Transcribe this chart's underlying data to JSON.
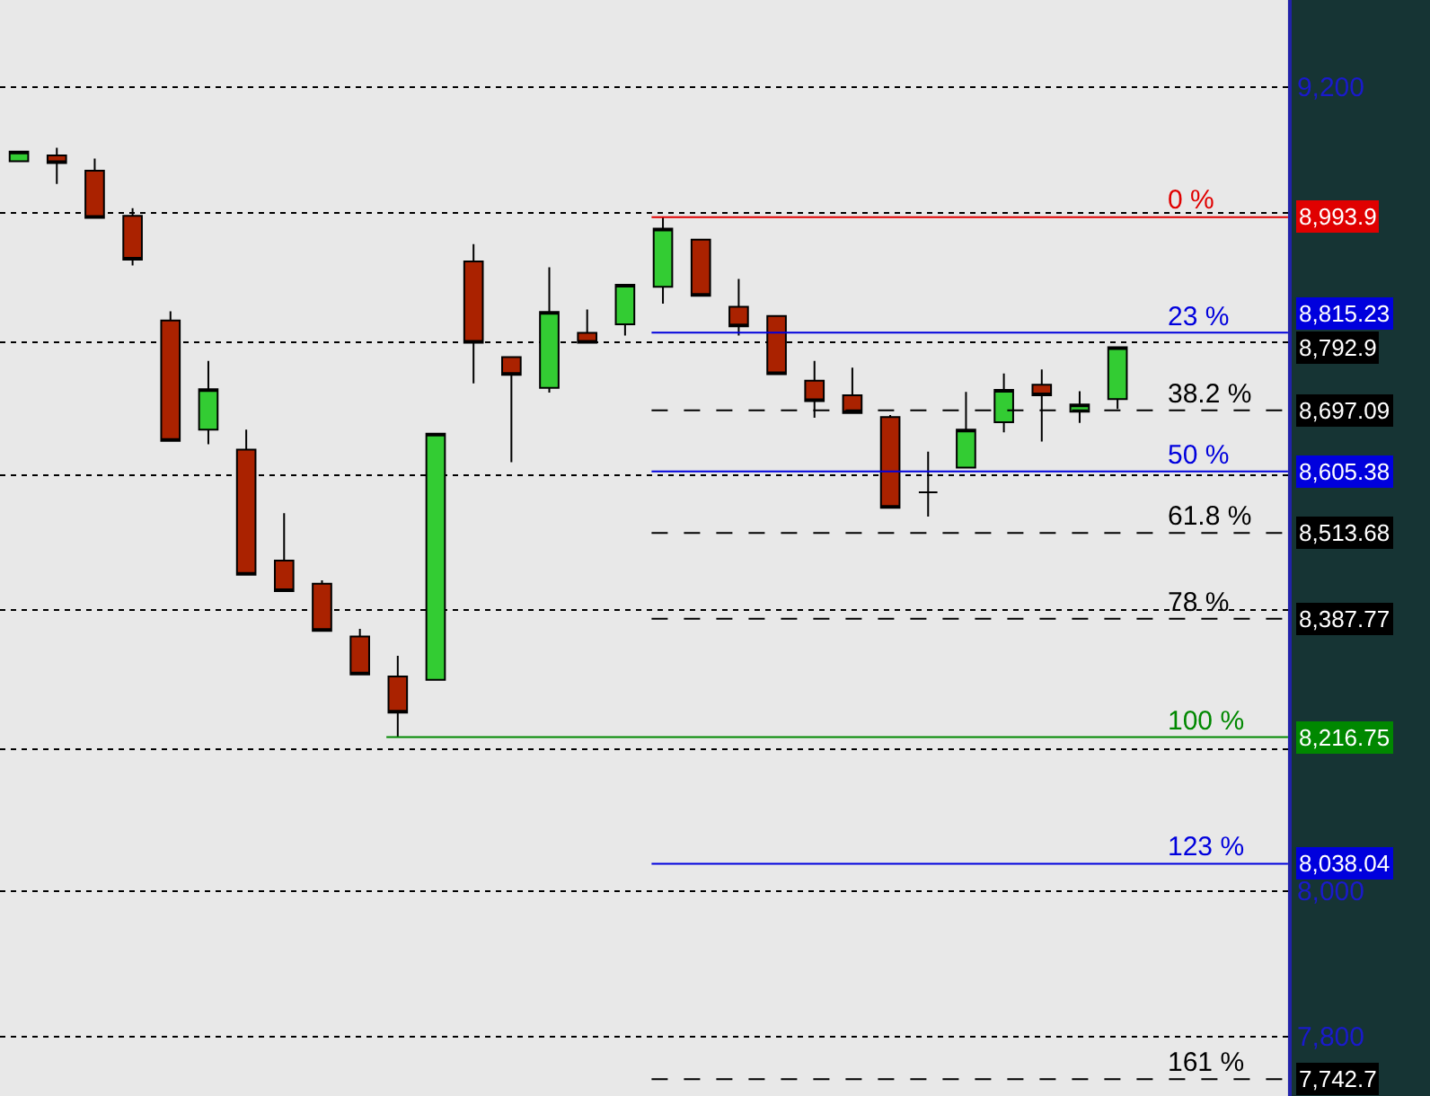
{
  "chart_data": {
    "type": "candlestick",
    "categories": [
      null,
      null,
      null,
      null,
      null,
      null,
      null,
      null,
      null,
      null,
      null,
      null,
      null,
      null,
      null,
      null,
      null,
      null,
      null,
      null,
      null,
      null,
      null,
      null,
      null,
      null,
      null,
      null,
      null,
      null,
      null,
      null,
      null,
      null
    ],
    "ohlc": [
      [
        9082,
        9097,
        9082,
        9097
      ],
      [
        9091,
        9103,
        9046,
        9079
      ],
      [
        9067,
        9086,
        8993,
        8993
      ],
      [
        8996,
        9008,
        8919,
        8928
      ],
      [
        8834,
        8848,
        8651,
        8651
      ],
      [
        8668,
        8772,
        8646,
        8729
      ],
      [
        8638,
        8668,
        8452,
        8452
      ],
      [
        8473,
        8543,
        8428,
        8428
      ],
      [
        8439,
        8444,
        8370,
        8370
      ],
      [
        8362,
        8373,
        8307,
        8307
      ],
      [
        8304,
        8334,
        8216.75,
        8252
      ],
      [
        8299,
        8662,
        8299,
        8662
      ],
      [
        8925,
        8952,
        8738,
        8800
      ],
      [
        8778,
        8778,
        8619,
        8751
      ],
      [
        8731,
        8916,
        8724,
        8847
      ],
      [
        8815,
        8851,
        8800,
        8800
      ],
      [
        8828,
        8889,
        8811,
        8889
      ],
      [
        8886,
        8993.9,
        8860,
        8976
      ],
      [
        8959,
        8959,
        8872,
        8872
      ],
      [
        8855,
        8898,
        8811,
        8825
      ],
      [
        8841,
        8841,
        8752,
        8752
      ],
      [
        8742,
        8772,
        8686,
        8711
      ],
      [
        8720,
        8762,
        8693,
        8693
      ],
      [
        8687,
        8690,
        8551,
        8551
      ],
      [
        8574,
        8635,
        8538,
        8574
      ],
      [
        8611,
        8725,
        8611,
        8668
      ],
      [
        8679,
        8753,
        8664,
        8728
      ],
      [
        8736,
        8759,
        8650,
        8720
      ],
      [
        8695,
        8726,
        8678,
        8706
      ],
      [
        8714,
        8794,
        8699,
        8792.9
      ],
      null,
      null,
      null,
      null
    ],
    "colors": [
      "#33cc33",
      "#aa2200",
      "#aa2200",
      "#aa2200",
      "#aa2200",
      "#33cc33",
      "#aa2200",
      "#aa2200",
      "#aa2200",
      "#aa2200",
      "#aa2200",
      "#33cc33",
      "#aa2200",
      "#aa2200",
      "#33cc33",
      "#aa2200",
      "#33cc33",
      "#33cc33",
      "#aa2200",
      "#aa2200",
      "#aa2200",
      "#aa2200",
      "#aa2200",
      "#aa2200",
      "#000000",
      "#33cc33",
      "#33cc33",
      "#aa2200",
      "#33cc33",
      "#33cc33",
      null,
      null,
      null,
      null
    ],
    "log": true,
    "ylim": [
      7720,
      9340
    ],
    "yticks": [
      {
        "value": 9200,
        "label": "9,200"
      },
      {
        "value": 9000,
        "label": null
      },
      {
        "value": 8800,
        "label": null
      },
      {
        "value": 8600,
        "label": null
      },
      {
        "value": 8400,
        "label": null
      },
      {
        "value": 8200,
        "label": null
      },
      {
        "value": 8000,
        "label": "8,000"
      },
      {
        "value": 7800,
        "label": "7,800"
      }
    ],
    "grid": "y",
    "tick_labels": "y",
    "ref_lines": [
      {
        "axis": "y",
        "value": 8993.9,
        "label": "8,993.9",
        "color": "#e00000",
        "line_style": "solid"
      },
      {
        "axis": "y",
        "value": 8815.23,
        "label": "8,815.23",
        "color": "#0000dd",
        "line_style": "solid"
      },
      {
        "axis": "y",
        "value": 8697.09,
        "label": "8,697.09",
        "color": "#000000",
        "line_style": "dashed"
      },
      {
        "axis": "y",
        "value": 8605.38,
        "label": "8,605.38",
        "color": "#0000dd",
        "line_style": "solid"
      },
      {
        "axis": "y",
        "value": 8513.68,
        "label": "8,513.68",
        "color": "#000000",
        "line_style": "dashed"
      },
      {
        "axis": "y",
        "value": 8387.77,
        "label": "8,387.77",
        "color": "#000000",
        "line_style": "dashed"
      },
      {
        "axis": "y",
        "value": 8216.75,
        "label": "8,216.75",
        "color": "#008800",
        "line_style": "solid"
      },
      {
        "axis": "y",
        "value": 8038.04,
        "label": "8,038.04",
        "color": "#0000dd",
        "line_style": "solid"
      },
      {
        "axis": "y",
        "value": 7742.7,
        "label": "7,742.7",
        "color": "#000000",
        "line_style": "dashed"
      }
    ],
    "annotations": [
      "0 %",
      "23 %",
      "38.2 %",
      "50 %",
      "61.8 %",
      "78 %",
      "100 %",
      "123 %",
      "161 %",
      "8,792.9"
    ]
  }
}
